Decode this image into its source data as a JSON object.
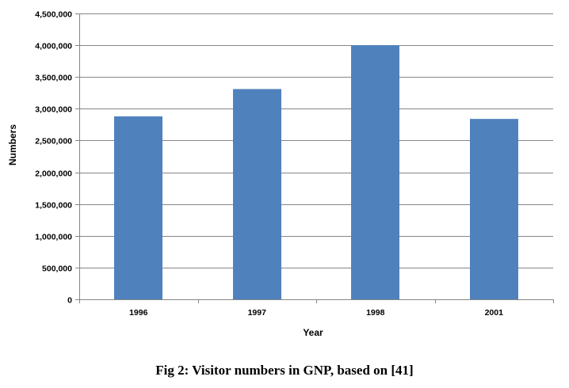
{
  "caption": "Fig 2: Visitor numbers in GNP, based on [41]",
  "chart_data": {
    "type": "bar",
    "categories": [
      "1996",
      "1997",
      "1998",
      "2001"
    ],
    "values": [
      2880000,
      3310000,
      4000000,
      2840000
    ],
    "xlabel": "Year",
    "ylabel": "Numbers",
    "ylim": [
      0,
      4500000
    ],
    "ytick_step": 500000,
    "yticks": [
      "0",
      "500,000",
      "1,000,000",
      "1,500,000",
      "2,000,000",
      "2,500,000",
      "3,000,000",
      "3,500,000",
      "4,000,000",
      "4,500,000"
    ],
    "grid": "horizontal",
    "legend": "none",
    "bar_color": "#4F81BD",
    "grid_color": "#868686"
  }
}
